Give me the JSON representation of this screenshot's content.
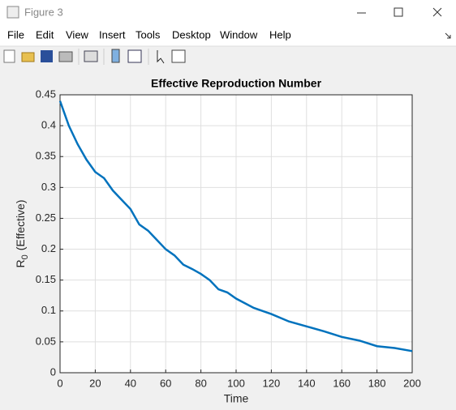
{
  "window": {
    "title": "Figure 3",
    "menu": [
      "File",
      "Edit",
      "View",
      "Insert",
      "Tools",
      "Desktop",
      "Window",
      "Help"
    ]
  },
  "chart_data": {
    "type": "line",
    "title": "Effective Reproduction Number",
    "xlabel": "Time",
    "ylabel": [
      "R",
      "0",
      "(Effective)"
    ],
    "x": [
      0,
      5,
      10,
      15,
      20,
      25,
      30,
      35,
      40,
      45,
      50,
      55,
      60,
      65,
      70,
      75,
      80,
      85,
      90,
      95,
      100,
      110,
      120,
      130,
      140,
      150,
      160,
      170,
      180,
      190,
      200
    ],
    "values": [
      0.44,
      0.4,
      0.37,
      0.345,
      0.325,
      0.315,
      0.295,
      0.28,
      0.265,
      0.24,
      0.23,
      0.215,
      0.2,
      0.19,
      0.175,
      0.168,
      0.16,
      0.15,
      0.135,
      0.13,
      0.12,
      0.105,
      0.095,
      0.083,
      0.075,
      0.067,
      0.058,
      0.052,
      0.043,
      0.04,
      0.035
    ],
    "color": "#0072bd",
    "xlim": [
      0,
      200
    ],
    "ylim": [
      0,
      0.45
    ],
    "xticks": [
      0,
      20,
      40,
      60,
      80,
      100,
      120,
      140,
      160,
      180,
      200
    ],
    "yticks": [
      0,
      0.05,
      0.1,
      0.15,
      0.2,
      0.25,
      0.3,
      0.35,
      0.4,
      0.45
    ],
    "grid": true
  }
}
